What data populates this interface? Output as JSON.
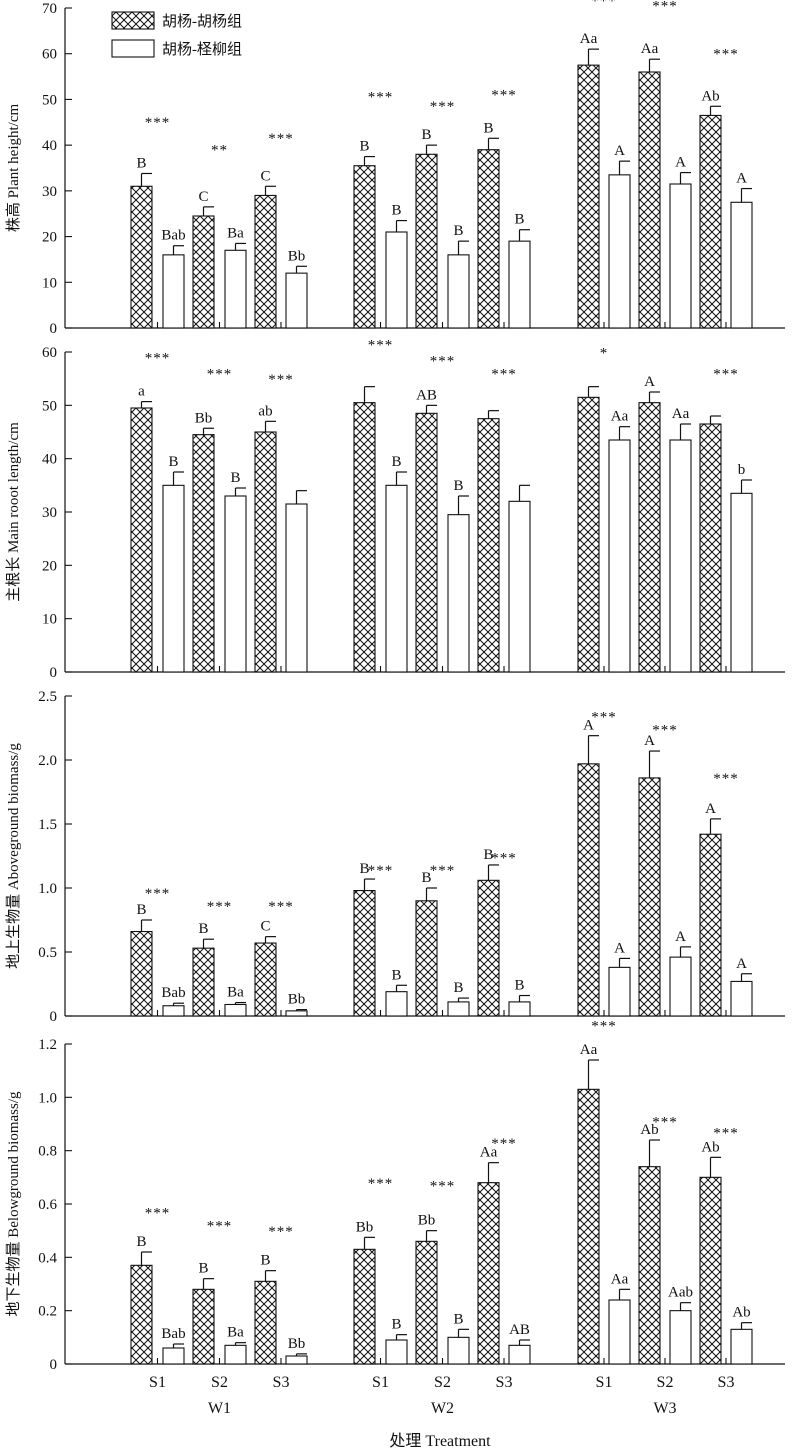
{
  "chart_data": {
    "type": "bar",
    "legend": {
      "position": "top-left",
      "entries": [
        {
          "label": "胡杨-胡杨组",
          "pattern": "crosshatch"
        },
        {
          "label": "胡杨-柽柳组",
          "pattern": "open"
        }
      ]
    },
    "x_tick_labels": [
      "S1",
      "S2",
      "S3"
    ],
    "groups": [
      "W1",
      "W2",
      "W3"
    ],
    "xlabel": "处理  Treatment",
    "panels": [
      {
        "ylabel": "株高 Plant height/cm",
        "ylim": [
          0,
          70
        ],
        "yticks": [
          0,
          10,
          20,
          30,
          40,
          50,
          60,
          70
        ],
        "ytick_labels": [
          "0",
          "10",
          "20",
          "30",
          "40",
          "50",
          "60",
          "70"
        ],
        "series": [
          {
            "values": [
              31,
              24.5,
              29,
              35.5,
              38,
              39,
              57.5,
              56,
              46.5
            ],
            "errors": [
              2.8,
              2,
              2,
              2,
              2,
              2.5,
              3.5,
              2.8,
              2
            ],
            "letters": [
              "B",
              "C",
              "C",
              "B",
              "B",
              "B",
              "Aa",
              "Aa",
              "Ab"
            ]
          },
          {
            "values": [
              16,
              17,
              12,
              21,
              16,
              19,
              33.5,
              31.5,
              27.5
            ],
            "errors": [
              2,
              1.5,
              1.5,
              2.5,
              3,
              2.5,
              3,
              2.5,
              3
            ],
            "letters": [
              "Bab",
              "Ba",
              "Bb",
              "B",
              "B",
              "B",
              "A",
              "A",
              "A"
            ]
          }
        ],
        "significance": [
          "***",
          "**",
          "***",
          "***",
          "***",
          "***",
          "***",
          "***",
          "***"
        ],
        "significance_values": [
          44,
          38,
          40.5,
          49.5,
          47.5,
          50,
          70.5,
          69.5,
          59
        ]
      },
      {
        "ylabel": "主根长 Main rooot length/cm",
        "ylim": [
          0,
          60
        ],
        "yticks": [
          0,
          10,
          20,
          30,
          40,
          50,
          60
        ],
        "ytick_labels": [
          "0",
          "10",
          "20",
          "30",
          "40",
          "50",
          "60"
        ],
        "series": [
          {
            "values": [
              49.5,
              44.5,
              45,
              50.5,
              48.5,
              47.5,
              51.5,
              50.5,
              46.5
            ],
            "errors": [
              1.2,
              1.2,
              2,
              3,
              1.5,
              1.5,
              2,
              2,
              1.5
            ],
            "letters": [
              "a",
              "Bb",
              "ab",
              "",
              "AB",
              "",
              "",
              "A",
              ""
            ]
          },
          {
            "values": [
              35,
              33,
              31.5,
              35,
              29.5,
              32,
              43.5,
              43.5,
              33.5
            ],
            "errors": [
              2.5,
              1.5,
              2.5,
              2.5,
              3.5,
              3,
              2.5,
              3,
              2.5
            ],
            "letters": [
              "B",
              "B",
              "",
              "B",
              "B",
              "",
              "Aa",
              "Aa",
              "b"
            ]
          }
        ],
        "significance": [
          "***",
          "***",
          "***",
          "***",
          "***",
          "***",
          "*",
          "",
          "***"
        ],
        "significance_values": [
          58,
          55,
          54,
          60.5,
          57.5,
          55,
          59,
          0,
          55
        ]
      },
      {
        "ylabel": "地上生物量 Aboveground biomass/g",
        "ylim": [
          0,
          2.5
        ],
        "yticks": [
          0,
          0.5,
          1.0,
          1.5,
          2.0,
          2.5
        ],
        "ytick_labels": [
          "0",
          "0.5",
          "1.0",
          "1.5",
          "2.0",
          "2.5"
        ],
        "series": [
          {
            "values": [
              0.66,
              0.53,
              0.57,
              0.98,
              0.9,
              1.06,
              1.97,
              1.86,
              1.42
            ],
            "errors": [
              0.09,
              0.07,
              0.05,
              0.09,
              0.1,
              0.12,
              0.22,
              0.21,
              0.12
            ],
            "letters": [
              "B",
              "B",
              "C",
              "B",
              "B",
              "B",
              "A",
              "A",
              "A"
            ]
          },
          {
            "values": [
              0.08,
              0.09,
              0.04,
              0.19,
              0.11,
              0.11,
              0.38,
              0.46,
              0.27
            ],
            "errors": [
              0.02,
              0.015,
              0.01,
              0.05,
              0.03,
              0.05,
              0.07,
              0.08,
              0.06
            ],
            "letters": [
              "Bab",
              "Ba",
              "Bb",
              "B",
              "B",
              "B",
              "A",
              "A",
              "A"
            ]
          }
        ],
        "significance": [
          "***",
          "***",
          "***",
          "***",
          "***",
          "***",
          "***",
          "***",
          "***"
        ],
        "significance_values": [
          0.92,
          0.82,
          0.82,
          1.1,
          1.1,
          1.2,
          2.3,
          2.2,
          1.82
        ]
      },
      {
        "ylabel": "地下生物量 Belowground biomass/g",
        "ylim": [
          0,
          1.2
        ],
        "yticks": [
          0,
          0.2,
          0.4,
          0.6,
          0.8,
          1.0,
          1.2
        ],
        "ytick_labels": [
          "0",
          "0.2",
          "0.4",
          "0.6",
          "0.8",
          "1.0",
          "1.2"
        ],
        "series": [
          {
            "values": [
              0.37,
              0.28,
              0.31,
              0.43,
              0.46,
              0.68,
              1.03,
              0.74,
              0.7
            ],
            "errors": [
              0.05,
              0.04,
              0.04,
              0.045,
              0.04,
              0.075,
              0.11,
              0.1,
              0.075
            ],
            "letters": [
              "B",
              "B",
              "B",
              "Bb",
              "Bb",
              "Aa",
              "Aa",
              "Ab",
              "Ab"
            ]
          },
          {
            "values": [
              0.06,
              0.07,
              0.03,
              0.09,
              0.1,
              0.07,
              0.24,
              0.2,
              0.13
            ],
            "errors": [
              0.015,
              0.01,
              0.008,
              0.02,
              0.03,
              0.02,
              0.04,
              0.03,
              0.025
            ],
            "letters": [
              "Bab",
              "Ba",
              "Bb",
              "B",
              "B",
              "AB",
              "Aa",
              "Aab",
              "Ab"
            ]
          }
        ],
        "significance": [
          "***",
          "***",
          "***",
          "***",
          "***",
          "***",
          "***",
          "***",
          "***"
        ],
        "significance_values": [
          0.55,
          0.5,
          0.48,
          0.66,
          0.65,
          0.81,
          1.25,
          0.89,
          0.85
        ]
      }
    ]
  }
}
